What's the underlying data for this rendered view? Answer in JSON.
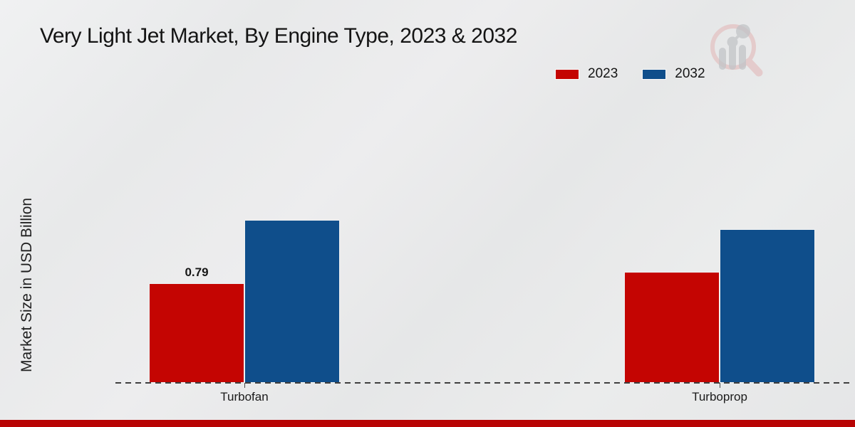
{
  "header": {
    "title": "Very Light Jet Market, By Engine Type, 2023 & 2032"
  },
  "chart_data": {
    "type": "bar",
    "title": "Very Light Jet Market, By Engine Type, 2023 & 2032",
    "xlabel": "",
    "ylabel": "Market Size in USD Billion",
    "categories": [
      "Turbofan",
      "Turboprop"
    ],
    "series": [
      {
        "name": "2023",
        "color": "#c40502",
        "values": [
          0.79,
          0.88
        ]
      },
      {
        "name": "2032",
        "color": "#0f4e8b",
        "values": [
          1.29,
          1.22
        ]
      }
    ],
    "value_labels": [
      {
        "series_index": 0,
        "category_index": 0,
        "text": "0.79"
      }
    ],
    "ylim": [
      0,
      1.4
    ],
    "grid": false,
    "legend_position": "top-right",
    "baseline_style": "dashed"
  },
  "branding": {
    "watermark_icon": "magnifier-bar-chart-logo",
    "footer_bar_color": "#b80404"
  }
}
